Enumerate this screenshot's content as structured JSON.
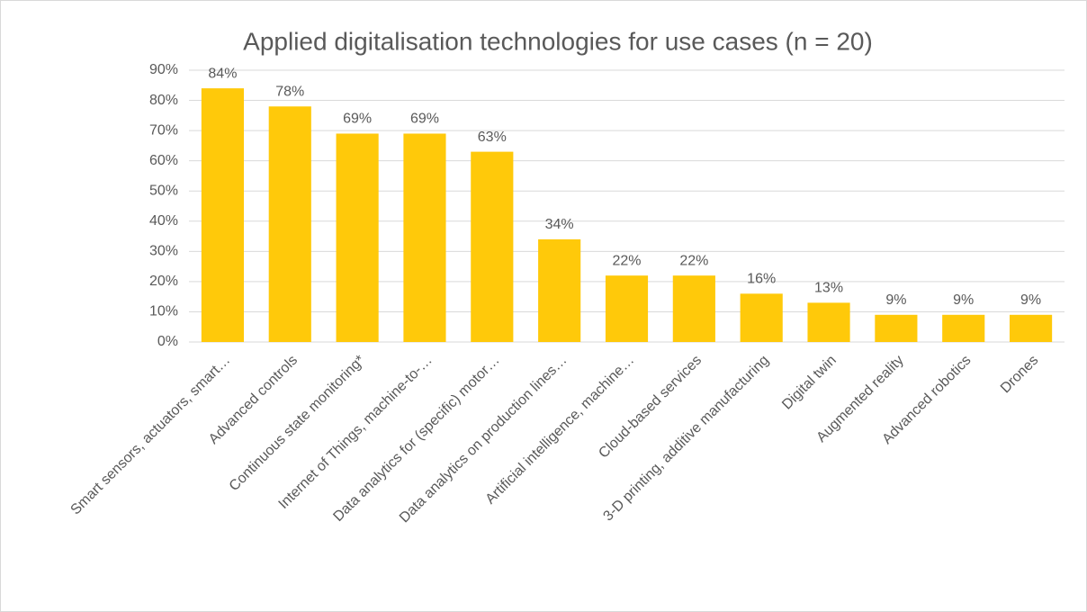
{
  "chart_data": {
    "type": "bar",
    "title": "Applied digitalisation technologies for use cases (n = 20)",
    "categories": [
      "Smart sensors, actuators, smart…",
      "Advanced controls",
      "Continuous state monitoring*",
      "Internet of Things, machine-to-…",
      "Data analytics for (specific) motor…",
      "Data analytics on production lines…",
      "Artificial intelligence, machine…",
      "Cloud-based services",
      "3-D printing, additive manufacturing",
      "Digital twin",
      "Augmented reality",
      "Advanced robotics",
      "Drones"
    ],
    "values": [
      84,
      78,
      69,
      69,
      63,
      34,
      22,
      22,
      16,
      13,
      9,
      9,
      9
    ],
    "value_labels": [
      "84%",
      "78%",
      "69%",
      "69%",
      "63%",
      "34%",
      "22%",
      "22%",
      "16%",
      "13%",
      "9%",
      "9%",
      "9%"
    ],
    "color": "#ffc90a",
    "ylim": [
      0,
      90
    ],
    "yticks": [
      {
        "value": 0,
        "label": "0%"
      },
      {
        "value": 10,
        "label": "10%"
      },
      {
        "value": 20,
        "label": "20%"
      },
      {
        "value": 30,
        "label": "30%"
      },
      {
        "value": 40,
        "label": "40%"
      },
      {
        "value": 50,
        "label": "50%"
      },
      {
        "value": 60,
        "label": "60%"
      },
      {
        "value": 70,
        "label": "70%"
      },
      {
        "value": 80,
        "label": "80%"
      },
      {
        "value": 90,
        "label": "90%"
      }
    ],
    "grid": true
  }
}
